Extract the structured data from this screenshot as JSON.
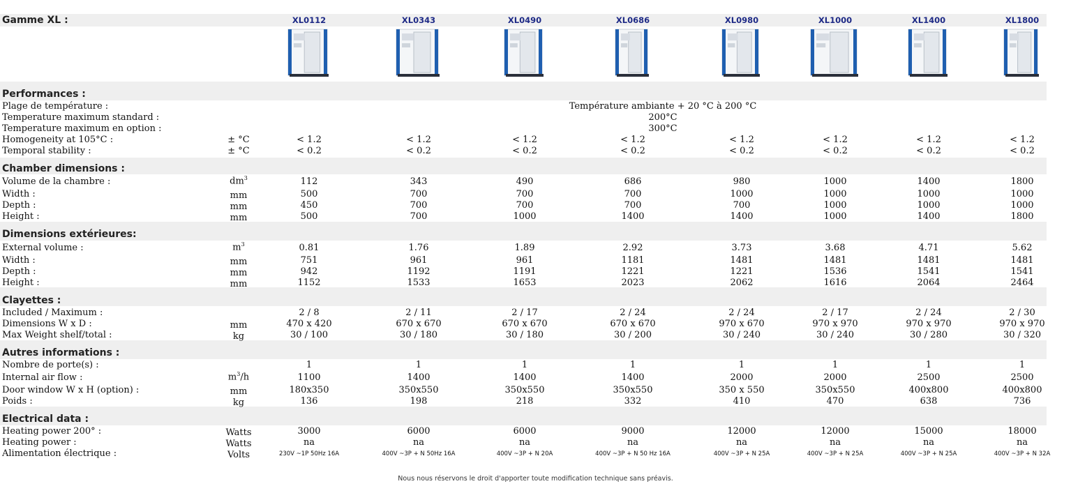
{
  "title": "Gamme XL :",
  "models": [
    "XL0112",
    "XL0343",
    "XL0490",
    "XL0686",
    "XL0980",
    "XL1000",
    "XL1400",
    "XL1800"
  ],
  "performances": {
    "header": "Performances :",
    "temp_range_label": "Plage de température :",
    "temp_range_value": "Température ambiante + 20 °C à 200 °C",
    "temp_max_std_label": "Temperature maximum standard :",
    "temp_max_std_value": "200°C",
    "temp_max_opt_label": "Temperature maximum en option :",
    "temp_max_opt_value": "300°C",
    "homog_label": "Homogeneity at 105°C :",
    "homog_unit": "± °C",
    "homog_values": [
      "< 1.2",
      "< 1.2",
      "< 1.2",
      "< 1.2",
      "< 1.2",
      "< 1.2",
      "< 1.2",
      "< 1.2"
    ],
    "stab_label": "Temporal stability :",
    "stab_unit": "± °C",
    "stab_values": [
      "< 0.2",
      "< 0.2",
      "< 0.2",
      "< 0.2",
      "< 0.2",
      "< 0.2",
      "< 0.2",
      "< 0.2"
    ]
  },
  "chamber": {
    "header": "Chamber dimensions :",
    "rows": [
      {
        "label": "Volume de la chambre :",
        "unit": "dm",
        "unit_sup": "3",
        "values": [
          "112",
          "343",
          "490",
          "686",
          "980",
          "1000",
          "1400",
          "1800"
        ]
      },
      {
        "label": "Width :",
        "unit": "mm",
        "unit_sup": "",
        "values": [
          "500",
          "700",
          "700",
          "700",
          "1000",
          "1000",
          "1000",
          "1000"
        ]
      },
      {
        "label": "Depth :",
        "unit": "mm",
        "unit_sup": "",
        "values": [
          "450",
          "700",
          "700",
          "700",
          "700",
          "1000",
          "1000",
          "1000"
        ]
      },
      {
        "label": "Height :",
        "unit": "mm",
        "unit_sup": "",
        "values": [
          "500",
          "700",
          "1000",
          "1400",
          "1400",
          "1000",
          "1400",
          "1800"
        ]
      }
    ]
  },
  "exterior": {
    "header": "Dimensions extérieures:",
    "rows": [
      {
        "label": "External volume :",
        "unit": "m",
        "unit_sup": "3",
        "values": [
          "0.81",
          "1.76",
          "1.89",
          "2.92",
          "3.73",
          "3.68",
          "4.71",
          "5.62"
        ]
      },
      {
        "label": "Width :",
        "unit": "mm",
        "unit_sup": "",
        "values": [
          "751",
          "961",
          "961",
          "1181",
          "1481",
          "1481",
          "1481",
          "1481"
        ]
      },
      {
        "label": "Depth :",
        "unit": "mm",
        "unit_sup": "",
        "values": [
          "942",
          "1192",
          "1191",
          "1221",
          "1221",
          "1536",
          "1541",
          "1541"
        ]
      },
      {
        "label": "Height :",
        "unit": "mm",
        "unit_sup": "",
        "values": [
          "1152",
          "1533",
          "1653",
          "2023",
          "2062",
          "1616",
          "2064",
          "2464"
        ]
      }
    ]
  },
  "shelves": {
    "header": "Clayettes :",
    "rows": [
      {
        "label": "Included / Maximum :",
        "unit": "",
        "unit_sup": "",
        "values": [
          "2 / 8",
          "2 / 11",
          "2 / 17",
          "2 / 24",
          "2 / 24",
          "2 / 17",
          "2 / 24",
          "2 / 30"
        ]
      },
      {
        "label": "Dimensions W x D :",
        "unit": "mm",
        "unit_sup": "",
        "values": [
          "470 x 420",
          "670 x 670",
          "670 x 670",
          "670 x 670",
          "970 x 670",
          "970 x 970",
          "970 x 970",
          "970 x 970"
        ]
      },
      {
        "label": "Max Weight shelf/total :",
        "unit": "kg",
        "unit_sup": "",
        "values": [
          "30 / 100",
          "30 / 180",
          "30 / 180",
          "30 / 200",
          "30 / 240",
          "30 / 240",
          "30 / 280",
          "30 / 320"
        ]
      }
    ]
  },
  "other": {
    "header": "Autres informations :",
    "rows": [
      {
        "label": "Nombre de porte(s) :",
        "unit": "",
        "unit_sup": "",
        "values": [
          "1",
          "1",
          "1",
          "1",
          "1",
          "1",
          "1",
          "1"
        ]
      },
      {
        "label": "Internal air flow :",
        "unit": "m",
        "unit_sup": "3",
        "unit_suffix": "/h",
        "values": [
          "1100",
          "1400",
          "1400",
          "1400",
          "2000",
          "2000",
          "2500",
          "2500"
        ]
      },
      {
        "label": "Door window W x H (option) :",
        "unit": "mm",
        "unit_sup": "",
        "values": [
          "180x350",
          "350x550",
          "350x550",
          "350x550",
          "350 x 550",
          "350x550",
          "400x800",
          "400x800"
        ]
      },
      {
        "label": "Poids :",
        "unit": "kg",
        "unit_sup": "",
        "values": [
          "136",
          "198",
          "218",
          "332",
          "410",
          "470",
          "638",
          "736"
        ]
      }
    ]
  },
  "electrical": {
    "header": "Electrical data :",
    "rows": [
      {
        "label": "Heating power 200° :",
        "unit": "Watts",
        "unit_sup": "",
        "values": [
          "3000",
          "6000",
          "6000",
          "9000",
          "12000",
          "12000",
          "15000",
          "18000"
        ]
      },
      {
        "label": "Heating power :",
        "unit": "Watts",
        "unit_sup": "",
        "values": [
          "na",
          "na",
          "na",
          "na",
          "na",
          "na",
          "na",
          "na"
        ]
      },
      {
        "label": "Alimentation électrique :",
        "unit": "Volts",
        "unit_sup": "",
        "small": true,
        "values": [
          "230V ~1P 50Hz 16A",
          "400V ~3P + N 50Hz 16A",
          "400V ~3P + N 20A",
          "400V ~3P + N 50 Hz 16A",
          "400V ~3P + N 25A",
          "400V ~3P + N 25A",
          "400V ~3P + N 25A",
          "400V ~3P + N 32A"
        ]
      }
    ]
  },
  "footer": "Nous nous réservons le droit d'apporter toute modification technique sans préavis.",
  "colors": {
    "band": "#efefef",
    "model_text": "#1e2a86",
    "cabinet_blue": "#1f5fb0"
  }
}
